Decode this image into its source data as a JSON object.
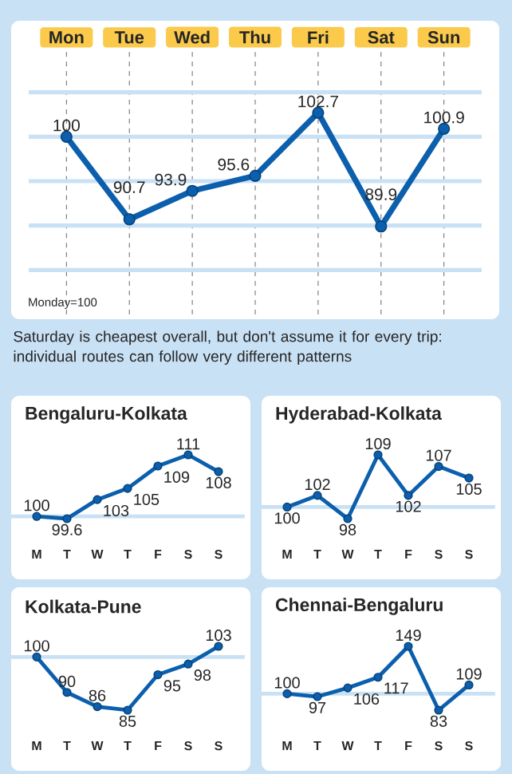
{
  "chart_data": [
    {
      "type": "line",
      "categories": [
        "Mon",
        "Tue",
        "Wed",
        "Thu",
        "Fri",
        "Sat",
        "Sun"
      ],
      "values": [
        100,
        90.7,
        93.9,
        95.6,
        102.7,
        89.9,
        100.9
      ],
      "color": "#0b5fad",
      "data_labels": true,
      "marker": "circle",
      "ylim": [
        80,
        110
      ],
      "yticks": [
        {
          "value": 85,
          "label": null
        },
        {
          "value": 90,
          "label": null
        },
        {
          "value": 95,
          "label": null
        },
        {
          "value": 100,
          "label": null
        },
        {
          "value": 105,
          "label": null
        }
      ],
      "grid": true,
      "tick_labels": "x",
      "annotations": [
        "Monday=100",
        "Saturday is cheapest overall, but don't assume it for every trip: individual routes can follow very different patterns"
      ]
    },
    {
      "type": "line",
      "title": "Bengaluru-Kolkata",
      "categories": [
        "M",
        "T",
        "W",
        "T",
        "F",
        "S",
        "S"
      ],
      "values": [
        100,
        99.6,
        103,
        105,
        109,
        111,
        108
      ],
      "color": "#0b5fad",
      "data_labels": true,
      "marker": "circle",
      "tick_labels": "x",
      "ref_lines": [
        {
          "axis": "y",
          "value": 100
        }
      ]
    },
    {
      "type": "line",
      "title": "Hyderabad-Kolkata",
      "categories": [
        "M",
        "T",
        "W",
        "T",
        "F",
        "S",
        "S"
      ],
      "values": [
        100,
        102,
        98,
        109,
        102,
        107,
        105
      ],
      "color": "#0b5fad",
      "data_labels": true,
      "marker": "circle",
      "tick_labels": "x",
      "ref_lines": [
        {
          "axis": "y",
          "value": 100
        }
      ]
    },
    {
      "type": "line",
      "title": "Kolkata-Pune",
      "categories": [
        "M",
        "T",
        "W",
        "T",
        "F",
        "S",
        "S"
      ],
      "values": [
        100,
        90,
        86,
        85,
        95,
        98,
        103
      ],
      "color": "#0b5fad",
      "data_labels": true,
      "marker": "circle",
      "tick_labels": "x",
      "ref_lines": [
        {
          "axis": "y",
          "value": 100
        }
      ]
    },
    {
      "type": "line",
      "title": "Chennai-Bengaluru",
      "categories": [
        "M",
        "T",
        "W",
        "T",
        "F",
        "S",
        "S"
      ],
      "values": [
        100,
        97,
        106,
        117,
        149,
        83,
        109
      ],
      "color": "#0b5fad",
      "data_labels": true,
      "marker": "circle",
      "tick_labels": "x",
      "ref_lines": [
        {
          "axis": "y",
          "value": 100
        }
      ]
    }
  ]
}
